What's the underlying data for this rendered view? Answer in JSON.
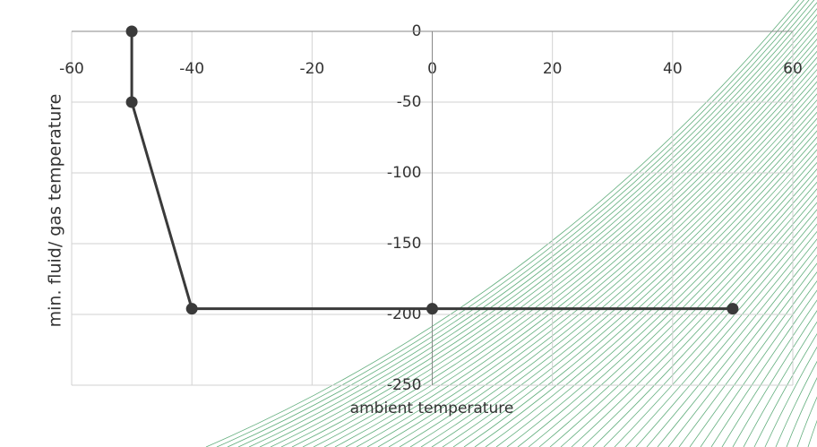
{
  "chart_data": {
    "type": "line",
    "x_label": "ambient temperature",
    "y_label": "min. fluid/ gas temperature",
    "x": [
      -50,
      -50,
      -40,
      0,
      50
    ],
    "values": [
      0,
      -50,
      -196,
      -196,
      -196
    ],
    "color": "#3a3a3a",
    "xlim": [
      -60,
      60
    ],
    "xticks": [
      -60,
      -40,
      -20,
      0,
      20,
      40,
      60
    ],
    "ylim": [
      -250,
      0
    ],
    "yticks": [
      0,
      -50,
      -100,
      -150,
      -200,
      -250
    ],
    "grid": true
  }
}
